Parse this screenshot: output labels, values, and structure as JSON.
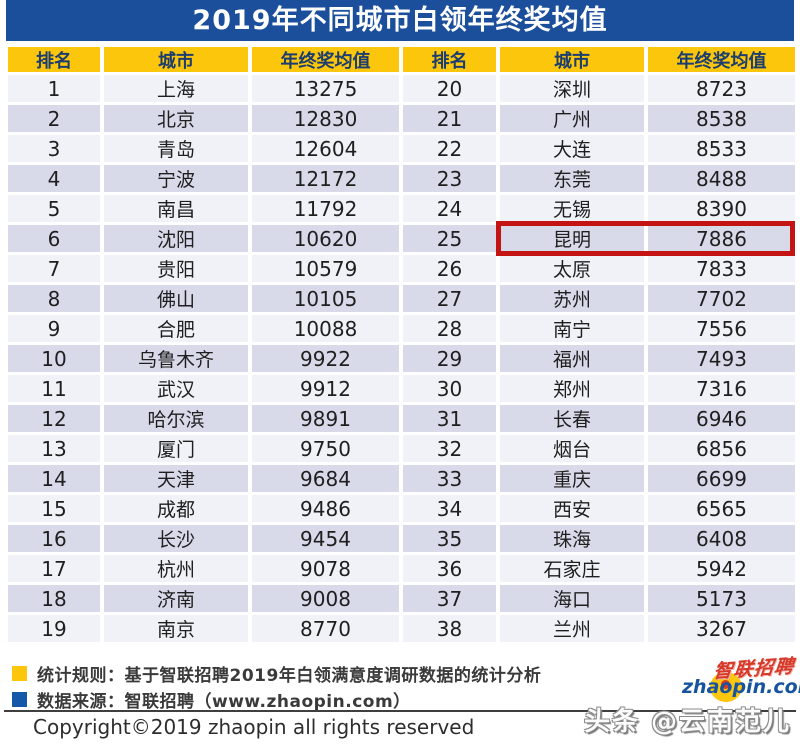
{
  "title": "2019年不同城市白领年终奖均值",
  "chart_data": {
    "type": "table",
    "title": "2019年不同城市白领年终奖均值",
    "columns": [
      "排名",
      "城市",
      "年终奖均值"
    ],
    "layout": "two side-by-side column groups, ranks 1-19 left and 20-38 right",
    "rows": [
      [
        1,
        "上海",
        13275
      ],
      [
        2,
        "北京",
        12830
      ],
      [
        3,
        "青岛",
        12604
      ],
      [
        4,
        "宁波",
        12172
      ],
      [
        5,
        "南昌",
        11792
      ],
      [
        6,
        "沈阳",
        10620
      ],
      [
        7,
        "贵阳",
        10579
      ],
      [
        8,
        "佛山",
        10105
      ],
      [
        9,
        "合肥",
        10088
      ],
      [
        10,
        "乌鲁木齐",
        9922
      ],
      [
        11,
        "武汉",
        9912
      ],
      [
        12,
        "哈尔滨",
        9891
      ],
      [
        13,
        "厦门",
        9750
      ],
      [
        14,
        "天津",
        9684
      ],
      [
        15,
        "成都",
        9486
      ],
      [
        16,
        "长沙",
        9454
      ],
      [
        17,
        "杭州",
        9078
      ],
      [
        18,
        "济南",
        9008
      ],
      [
        19,
        "南京",
        8770
      ],
      [
        20,
        "深圳",
        8723
      ],
      [
        21,
        "广州",
        8538
      ],
      [
        22,
        "大连",
        8533
      ],
      [
        23,
        "东莞",
        8488
      ],
      [
        24,
        "无锡",
        8390
      ],
      [
        25,
        "昆明",
        7886
      ],
      [
        26,
        "太原",
        7833
      ],
      [
        27,
        "苏州",
        7702
      ],
      [
        28,
        "南宁",
        7556
      ],
      [
        29,
        "福州",
        7493
      ],
      [
        30,
        "郑州",
        7316
      ],
      [
        31,
        "长春",
        6946
      ],
      [
        32,
        "烟台",
        6856
      ],
      [
        33,
        "重庆",
        6699
      ],
      [
        34,
        "西安",
        6565
      ],
      [
        35,
        "珠海",
        6408
      ],
      [
        36,
        "石家庄",
        5942
      ],
      [
        37,
        "海口",
        5173
      ],
      [
        38,
        "兰州",
        3267
      ]
    ],
    "highlighted_row": {
      "rank": 25,
      "city": "昆明",
      "value": 7886,
      "highlight_color": "#c41313"
    }
  },
  "footer": {
    "legend": [
      {
        "swatch_color": "#fcc60d",
        "label": "统计规则：基于智联招聘2019年白领满意度调研数据的统计分析"
      },
      {
        "swatch_color": "#1558a8",
        "label": "数据来源：智联招聘（www.zhaopin.com）"
      }
    ],
    "copyright": "Copyright©2019 zhaopin all rights reserved"
  },
  "logo": {
    "brand_cn": "智联招聘",
    "brand_en": "zhaopin.com"
  },
  "watermark": "头条 @云南范儿",
  "colors": {
    "title_bar": "#1b4e9b",
    "header_row": "#fcc60d",
    "header_text": "#1c3e6e",
    "row_light": "#f0f2f8",
    "row_dark": "#d8daea",
    "highlight_border": "#c41313"
  }
}
